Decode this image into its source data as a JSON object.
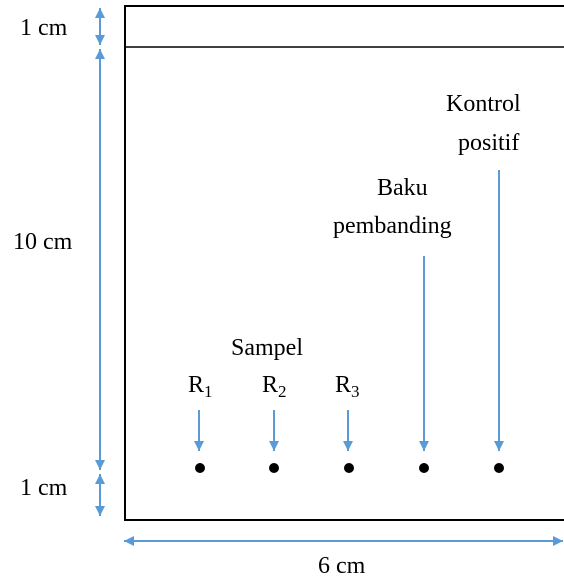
{
  "colors": {
    "dimension_arrow": "#5b9bd5",
    "sample_arrow": "#5b9bd5",
    "plate_outline": "#000000",
    "spot": "#000000"
  },
  "dimensions": {
    "top_margin": "1 cm",
    "run_length": "10 cm",
    "bottom_margin": "1 cm",
    "width": "6 cm"
  },
  "labels": {
    "sample_group": "Sampel",
    "r1": {
      "letter": "R",
      "sub": "1"
    },
    "r2": {
      "letter": "R",
      "sub": "2"
    },
    "r3": {
      "letter": "R",
      "sub": "3"
    },
    "reference_line1": "Baku",
    "reference_line2": "pembanding",
    "positive_control_line1": "Kontrol",
    "positive_control_line2": "positif"
  }
}
